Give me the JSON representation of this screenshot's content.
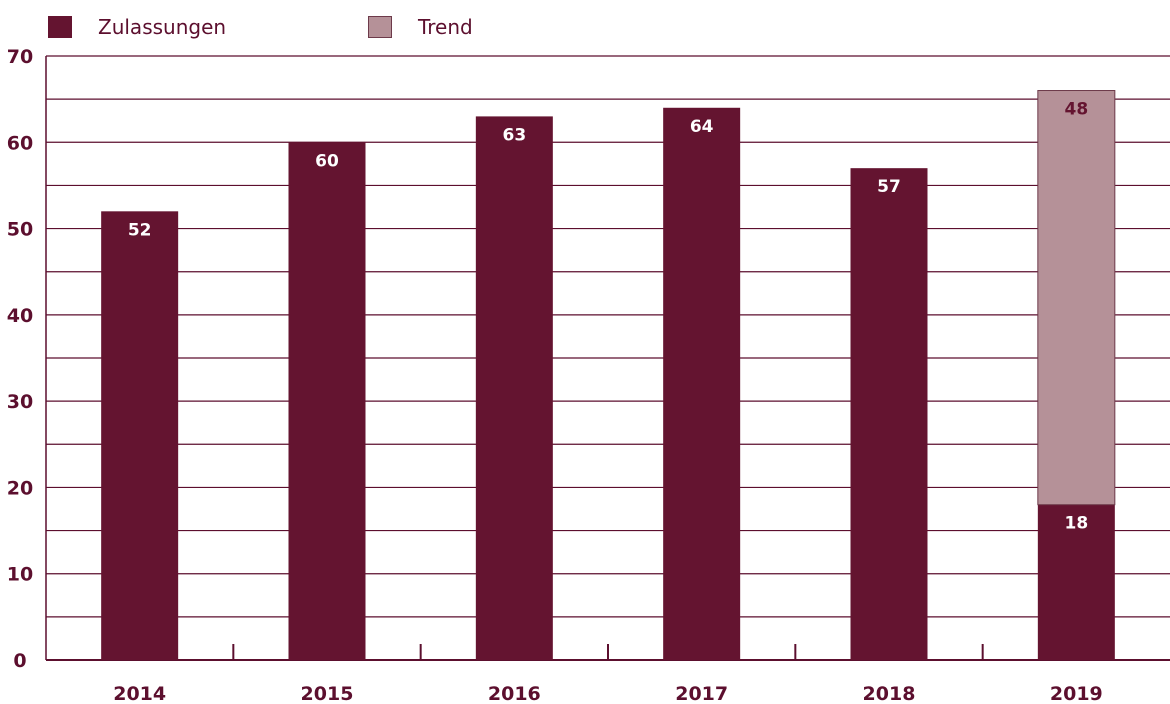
{
  "legend": {
    "items": [
      {
        "label": "Zulassungen",
        "color": "#641430"
      },
      {
        "label": "Trend",
        "color": "#b59198"
      }
    ]
  },
  "chart_data": {
    "type": "bar",
    "title": "",
    "xlabel": "",
    "ylabel": "",
    "categories": [
      "2014",
      "2015",
      "2016",
      "2017",
      "2018",
      "2019"
    ],
    "ylim": [
      0,
      70
    ],
    "y_ticks": [
      "0",
      "10",
      "20",
      "30",
      "40",
      "50",
      "60",
      "70"
    ],
    "grid": true,
    "legend_position": "top-left",
    "stacked": true,
    "series": [
      {
        "name": "Zulassungen",
        "color": "#641430",
        "values": [
          52,
          60,
          63,
          64,
          57,
          18
        ],
        "labels": [
          "52",
          "60",
          "63",
          "64",
          "57",
          "18"
        ]
      },
      {
        "name": "Trend",
        "color": "#b59198",
        "values": [
          null,
          null,
          null,
          null,
          null,
          48
        ],
        "labels": [
          null,
          null,
          null,
          null,
          null,
          "48"
        ]
      }
    ]
  }
}
